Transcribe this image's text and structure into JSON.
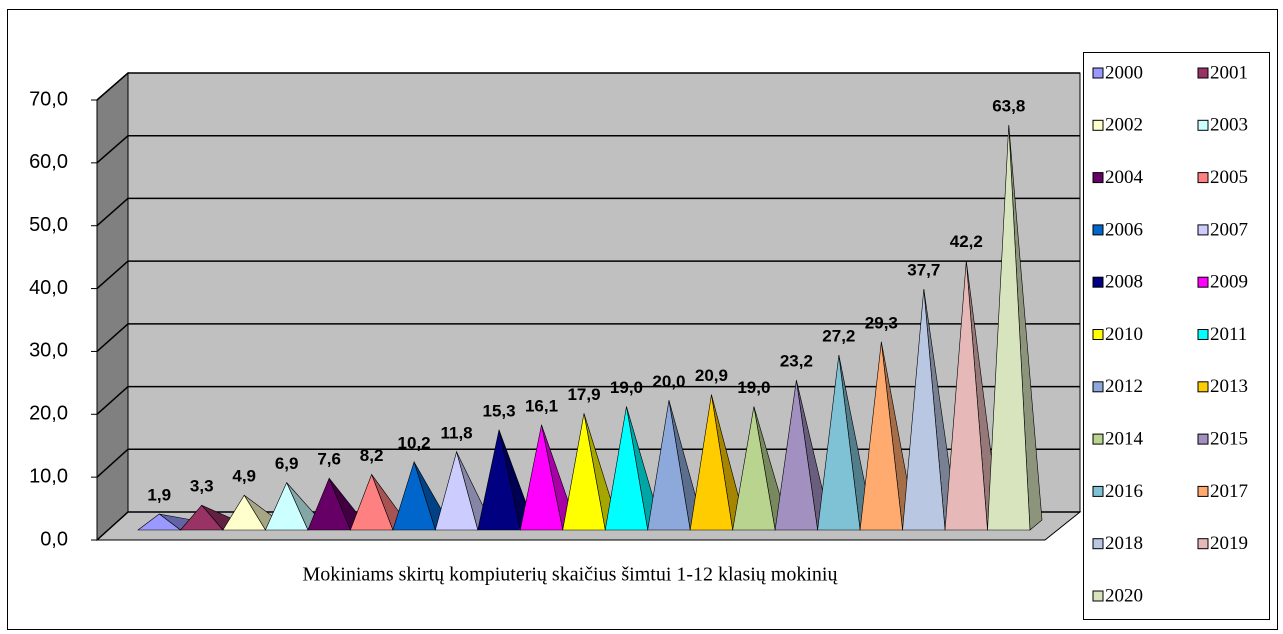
{
  "chart_data": {
    "type": "pyramid3d",
    "categories": [
      "Mokiniams skirtų kompiuterių skaičius šimtui 1-12 klasių mokinių"
    ],
    "series": [
      {
        "name": "2000",
        "color": "#9999FF",
        "values": [
          1.9
        ],
        "value_labels": [
          "1,9"
        ]
      },
      {
        "name": "2001",
        "color": "#993366",
        "values": [
          3.3
        ],
        "value_labels": [
          "3,3"
        ]
      },
      {
        "name": "2002",
        "color": "#FFFFCC",
        "values": [
          4.9
        ],
        "value_labels": [
          "4,9"
        ]
      },
      {
        "name": "2003",
        "color": "#CCFFFF",
        "values": [
          6.9
        ],
        "value_labels": [
          "6,9"
        ]
      },
      {
        "name": "2004",
        "color": "#660066",
        "values": [
          7.6
        ],
        "value_labels": [
          "7,6"
        ]
      },
      {
        "name": "2005",
        "color": "#FF8080",
        "values": [
          8.2
        ],
        "value_labels": [
          "8,2"
        ]
      },
      {
        "name": "2006",
        "color": "#0066CC",
        "values": [
          10.2
        ],
        "value_labels": [
          "10,2"
        ]
      },
      {
        "name": "2007",
        "color": "#CCCCFF",
        "values": [
          11.8
        ],
        "value_labels": [
          "11,8"
        ]
      },
      {
        "name": "2008",
        "color": "#000080",
        "values": [
          15.3
        ],
        "value_labels": [
          "15,3"
        ]
      },
      {
        "name": "2009",
        "color": "#FF00FF",
        "values": [
          16.1
        ],
        "value_labels": [
          "16,1"
        ]
      },
      {
        "name": "2010",
        "color": "#FFFF00",
        "values": [
          17.9
        ],
        "value_labels": [
          "17,9"
        ]
      },
      {
        "name": "2011",
        "color": "#00FFFF",
        "values": [
          19.0
        ],
        "value_labels": [
          "19,0"
        ]
      },
      {
        "name": "2012",
        "color": "#8DA9DB",
        "values": [
          20.0
        ],
        "value_labels": [
          "20,0"
        ]
      },
      {
        "name": "2013",
        "color": "#FFCC00",
        "values": [
          20.9
        ],
        "value_labels": [
          "20,9"
        ]
      },
      {
        "name": "2014",
        "color": "#B8D48F",
        "values": [
          19.0
        ],
        "value_labels": [
          "19,0"
        ]
      },
      {
        "name": "2015",
        "color": "#A291C0",
        "values": [
          23.2
        ],
        "value_labels": [
          "23,2"
        ]
      },
      {
        "name": "2016",
        "color": "#7FC2D6",
        "values": [
          27.2
        ],
        "value_labels": [
          "27,2"
        ]
      },
      {
        "name": "2017",
        "color": "#FFAA6F",
        "values": [
          29.3
        ],
        "value_labels": [
          "29,3"
        ]
      },
      {
        "name": "2018",
        "color": "#B9C7E3",
        "values": [
          37.7
        ],
        "value_labels": [
          "37,7"
        ]
      },
      {
        "name": "2019",
        "color": "#E6B9B8",
        "values": [
          42.2
        ],
        "value_labels": [
          "42,2"
        ]
      },
      {
        "name": "2020",
        "color": "#D7E4BD",
        "values": [
          63.8
        ],
        "value_labels": [
          "63,8"
        ]
      }
    ],
    "ylim": [
      0,
      70
    ],
    "yticks": [
      {
        "value": 0,
        "label": "0,0"
      },
      {
        "value": 10,
        "label": "10,0"
      },
      {
        "value": 20,
        "label": "20,0"
      },
      {
        "value": 30,
        "label": "30,0"
      },
      {
        "value": 40,
        "label": "40,0"
      },
      {
        "value": 50,
        "label": "50,0"
      },
      {
        "value": 60,
        "label": "60,0"
      },
      {
        "value": 70,
        "label": "70,0"
      }
    ],
    "grid": true,
    "legend": "right"
  }
}
